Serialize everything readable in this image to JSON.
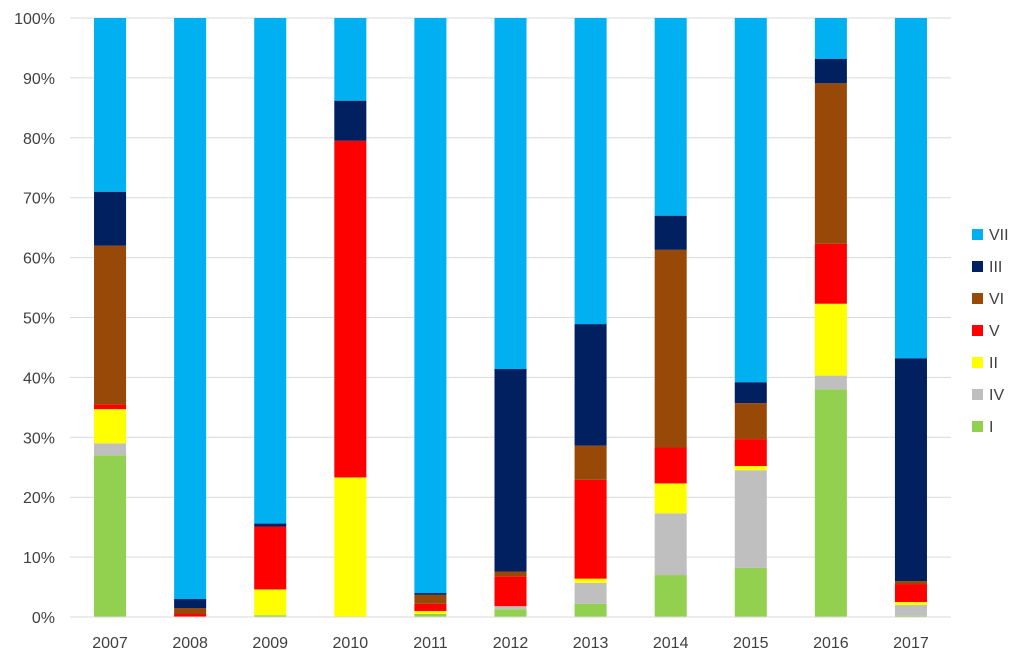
{
  "chart_data": {
    "type": "bar",
    "stacked": true,
    "percent": true,
    "title": "",
    "xlabel": "",
    "ylabel": "",
    "ylim": [
      0,
      100
    ],
    "yticks": [
      "0%",
      "10%",
      "20%",
      "30%",
      "40%",
      "50%",
      "60%",
      "70%",
      "80%",
      "90%",
      "100%"
    ],
    "grid": true,
    "legend_position": "right",
    "categories": [
      "2007",
      "2008",
      "2009",
      "2010",
      "2011",
      "2012",
      "2013",
      "2014",
      "2015",
      "2016",
      "2017"
    ],
    "series": [
      {
        "name": "I",
        "color": "#92d050",
        "values": [
          27.0,
          0.0,
          0.3,
          0.0,
          0.5,
          1.3,
          2.2,
          7.0,
          8.2,
          38.0,
          0.2
        ]
      },
      {
        "name": "IV",
        "color": "#bfbfbf",
        "values": [
          2.0,
          0.0,
          0.0,
          0.0,
          0.0,
          0.5,
          3.5,
          10.3,
          16.3,
          2.3,
          1.8
        ]
      },
      {
        "name": "II",
        "color": "#ffff00",
        "values": [
          5.7,
          0.0,
          4.3,
          23.3,
          0.5,
          0.0,
          0.7,
          5.0,
          0.7,
          12.0,
          0.5
        ]
      },
      {
        "name": "V",
        "color": "#ff0000",
        "values": [
          0.8,
          0.5,
          10.5,
          56.2,
          1.2,
          5.0,
          16.5,
          6.0,
          4.5,
          10.0,
          3.0
        ]
      },
      {
        "name": "VI",
        "color": "#984807",
        "values": [
          26.5,
          1.0,
          0.0,
          0.0,
          1.5,
          0.8,
          5.7,
          33.0,
          6.0,
          26.8,
          0.5
        ]
      },
      {
        "name": "III",
        "color": "#002060",
        "values": [
          9.0,
          1.5,
          0.5,
          6.7,
          0.3,
          33.8,
          20.3,
          5.7,
          3.5,
          4.1,
          37.2
        ]
      },
      {
        "name": "VII",
        "color": "#00b0f0",
        "values": [
          29.0,
          97.0,
          84.4,
          13.8,
          96.0,
          58.6,
          51.1,
          33.0,
          60.8,
          6.8,
          56.8
        ]
      }
    ],
    "legend_order": [
      "VII",
      "III",
      "VI",
      "V",
      "II",
      "IV",
      "I"
    ]
  }
}
